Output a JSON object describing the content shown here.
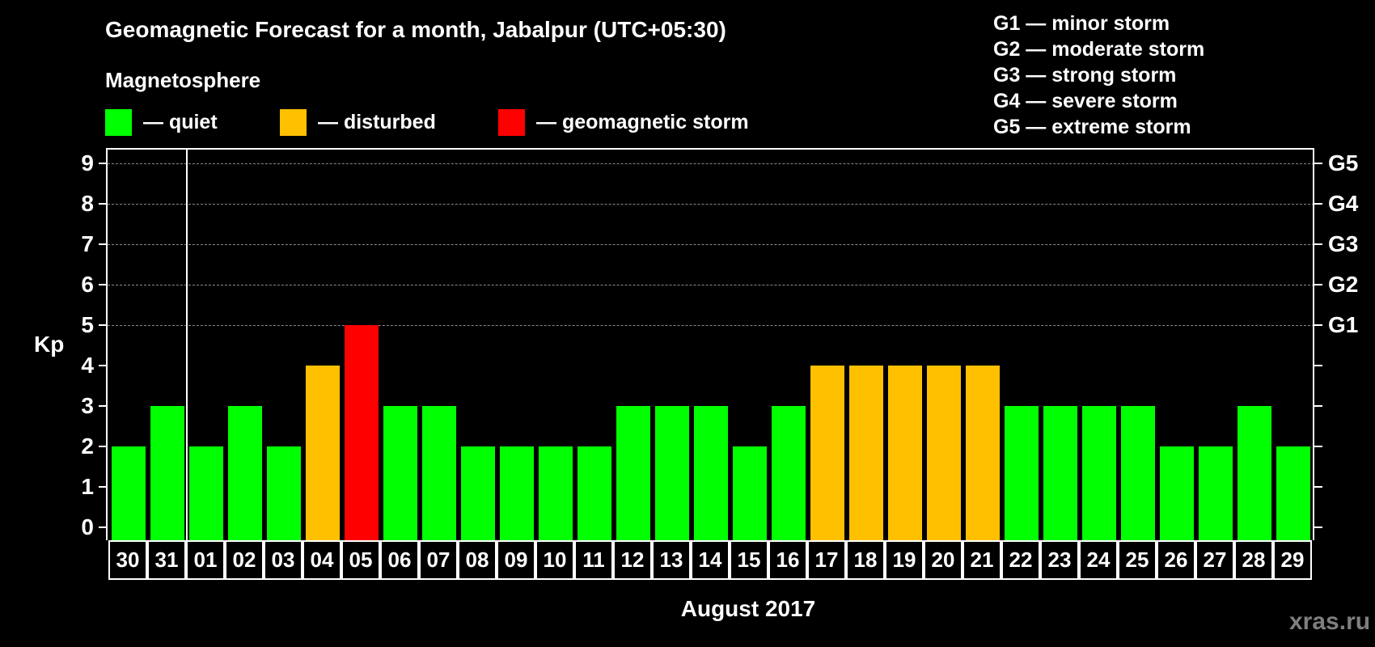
{
  "header": {
    "title": "Geomagnetic Forecast for a month, Jabalpur (UTC+05:30)",
    "subtitle": "Magnetosphere"
  },
  "legend": {
    "items": [
      {
        "label": "— quiet",
        "color": "#00ff00"
      },
      {
        "label": "— disturbed",
        "color": "#ffc000"
      },
      {
        "label": "— geomagnetic storm",
        "color": "#ff0000"
      }
    ]
  },
  "g_legend": [
    "G1 — minor storm",
    "G2 — moderate storm",
    "G3 — strong storm",
    "G4 — severe storm",
    "G5 — extreme storm"
  ],
  "watermark": "xras.ru",
  "chart_data": {
    "type": "bar",
    "title": "Geomagnetic Forecast for a month, Jabalpur (UTC+05:30)",
    "xlabel": "August 2017",
    "ylabel": "Kp",
    "ylim": [
      0,
      9
    ],
    "yticks": [
      "0",
      "1",
      "2",
      "3",
      "4",
      "5",
      "6",
      "7",
      "8",
      "9"
    ],
    "right_axis_labels": [
      {
        "kp": 5,
        "label": "G1"
      },
      {
        "kp": 6,
        "label": "G2"
      },
      {
        "kp": 7,
        "label": "G3"
      },
      {
        "kp": 8,
        "label": "G4"
      },
      {
        "kp": 9,
        "label": "G5"
      }
    ],
    "grid": "dashed horizontal at Kp 5-9",
    "categories": [
      "30",
      "31",
      "01",
      "02",
      "03",
      "04",
      "05",
      "06",
      "07",
      "08",
      "09",
      "10",
      "11",
      "12",
      "13",
      "14",
      "15",
      "16",
      "17",
      "18",
      "19",
      "20",
      "21",
      "22",
      "23",
      "24",
      "25",
      "26",
      "27",
      "28",
      "29"
    ],
    "values": [
      2,
      3,
      2,
      3,
      2,
      4,
      5,
      3,
      3,
      2,
      2,
      2,
      2,
      3,
      3,
      3,
      2,
      3,
      4,
      4,
      4,
      4,
      4,
      3,
      3,
      3,
      3,
      2,
      2,
      3,
      2
    ],
    "status": [
      "quiet",
      "quiet",
      "quiet",
      "quiet",
      "quiet",
      "disturbed",
      "storm",
      "quiet",
      "quiet",
      "quiet",
      "quiet",
      "quiet",
      "quiet",
      "quiet",
      "quiet",
      "quiet",
      "quiet",
      "quiet",
      "disturbed",
      "disturbed",
      "disturbed",
      "disturbed",
      "disturbed",
      "quiet",
      "quiet",
      "quiet",
      "quiet",
      "quiet",
      "quiet",
      "quiet",
      "quiet"
    ],
    "colors": {
      "quiet": "#00ff00",
      "disturbed": "#ffc000",
      "storm": "#ff0000"
    },
    "month_separator_after": "31",
    "legend": [
      "quiet",
      "disturbed",
      "geomagnetic storm"
    ]
  }
}
